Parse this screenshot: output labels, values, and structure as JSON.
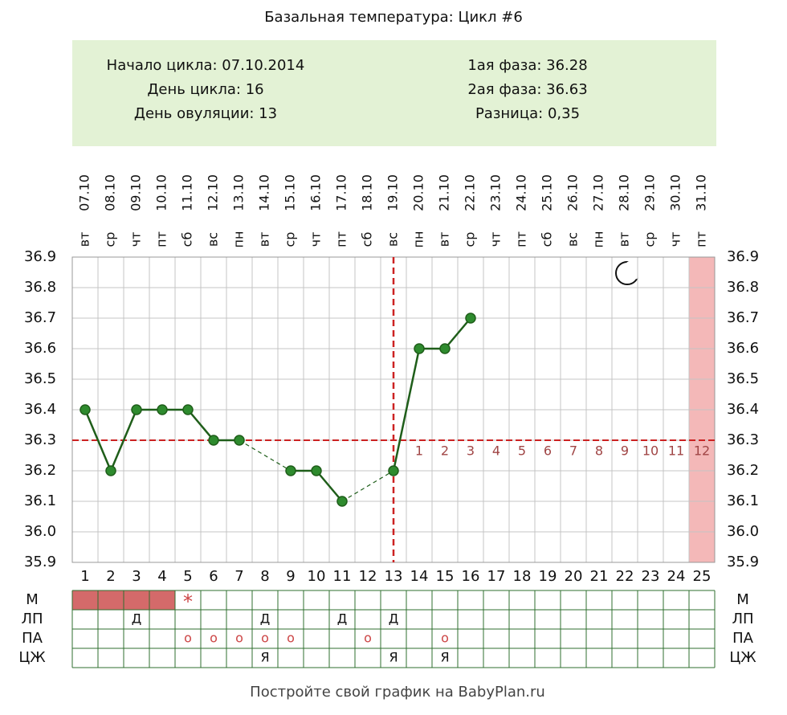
{
  "chart_data": {
    "type": "line",
    "title": "Базальная температура: Цикл #6",
    "x": [
      1,
      2,
      3,
      4,
      5,
      6,
      7,
      8,
      9,
      10,
      11,
      12,
      13,
      14,
      15,
      16,
      17,
      18,
      19,
      20,
      21,
      22,
      23,
      24,
      25
    ],
    "xlim": [
      0.5,
      25.5
    ],
    "xticks": [
      1,
      2,
      3,
      4,
      5,
      6,
      7,
      8,
      9,
      10,
      11,
      12,
      13,
      14,
      15,
      16,
      17,
      18,
      19,
      20,
      21,
      22,
      23,
      24,
      25
    ],
    "dates": [
      "07.10",
      "08.10",
      "09.10",
      "10.10",
      "11.10",
      "12.10",
      "13.10",
      "14.10",
      "15.10",
      "16.10",
      "17.10",
      "18.10",
      "19.10",
      "20.10",
      "21.10",
      "22.10",
      "23.10",
      "24.10",
      "25.10",
      "26.10",
      "27.10",
      "28.10",
      "29.10",
      "30.10",
      "31.10"
    ],
    "weekdays": [
      "вт",
      "ср",
      "чт",
      "пт",
      "сб",
      "вс",
      "пн",
      "вт",
      "ср",
      "чт",
      "пт",
      "сб",
      "вс",
      "пн",
      "вт",
      "ср",
      "чт",
      "пт",
      "сб",
      "вс",
      "пн",
      "вт",
      "ср",
      "чт",
      "пт"
    ],
    "series": [
      {
        "name": "Температура",
        "color": "#1f5e1a",
        "marker_color": "#2e8b2e",
        "values": [
          36.4,
          36.2,
          36.4,
          36.4,
          36.4,
          36.3,
          36.3,
          null,
          36.2,
          36.2,
          36.1,
          null,
          36.2,
          36.6,
          36.6,
          36.7,
          null,
          null,
          null,
          null,
          null,
          null,
          null,
          null,
          null
        ]
      }
    ],
    "ylim": [
      35.9,
      36.9
    ],
    "yticks": [
      36.9,
      36.8,
      36.7,
      36.6,
      36.5,
      36.4,
      36.3,
      36.2,
      36.1,
      {
        "value": 36.0,
        "label": "36.0"
      },
      35.9
    ],
    "grid": true,
    "coverline": 36.3,
    "ovulation_day": 13,
    "luteal_days": [
      1,
      2,
      3,
      4,
      5,
      6,
      7,
      8,
      9,
      10,
      11,
      12
    ],
    "shaded_days": [
      25
    ],
    "accent_color": "#cc2222"
  },
  "info": {
    "left": [
      "Начало цикла: 07.10.2014",
      "День цикла: 16",
      "День овуляции: 13"
    ],
    "right": [
      "1ая фаза: 36.28",
      "2ая фаза: 36.63",
      "Разница: 0,35"
    ]
  },
  "table": {
    "rows": [
      {
        "label": "М",
        "filled_days": [
          1,
          2,
          3,
          4
        ],
        "cells": [
          null,
          null,
          null,
          null,
          "*",
          null,
          null,
          null,
          null,
          null,
          null,
          null,
          null,
          null,
          null,
          null,
          null,
          null,
          null,
          null,
          null,
          null,
          null,
          null,
          null
        ]
      },
      {
        "label": "ЛП",
        "cells": [
          null,
          null,
          "Д",
          null,
          null,
          null,
          null,
          "Д",
          null,
          null,
          "Д",
          null,
          "Д",
          null,
          null,
          null,
          null,
          null,
          null,
          null,
          null,
          null,
          null,
          null,
          null
        ]
      },
      {
        "label": "ПА",
        "cells": [
          null,
          null,
          null,
          null,
          "о",
          "о",
          "о",
          "о",
          "о",
          null,
          null,
          "о",
          null,
          null,
          "о",
          null,
          null,
          null,
          null,
          null,
          null,
          null,
          null,
          null,
          null
        ]
      },
      {
        "label": "ЦЖ",
        "cells": [
          null,
          null,
          null,
          null,
          null,
          null,
          null,
          "Я",
          null,
          null,
          null,
          null,
          "Я",
          null,
          "Я",
          null,
          null,
          null,
          null,
          null,
          null,
          null,
          null,
          null,
          null
        ]
      }
    ]
  },
  "footer": "Постройте свой график на BabyPlan.ru"
}
